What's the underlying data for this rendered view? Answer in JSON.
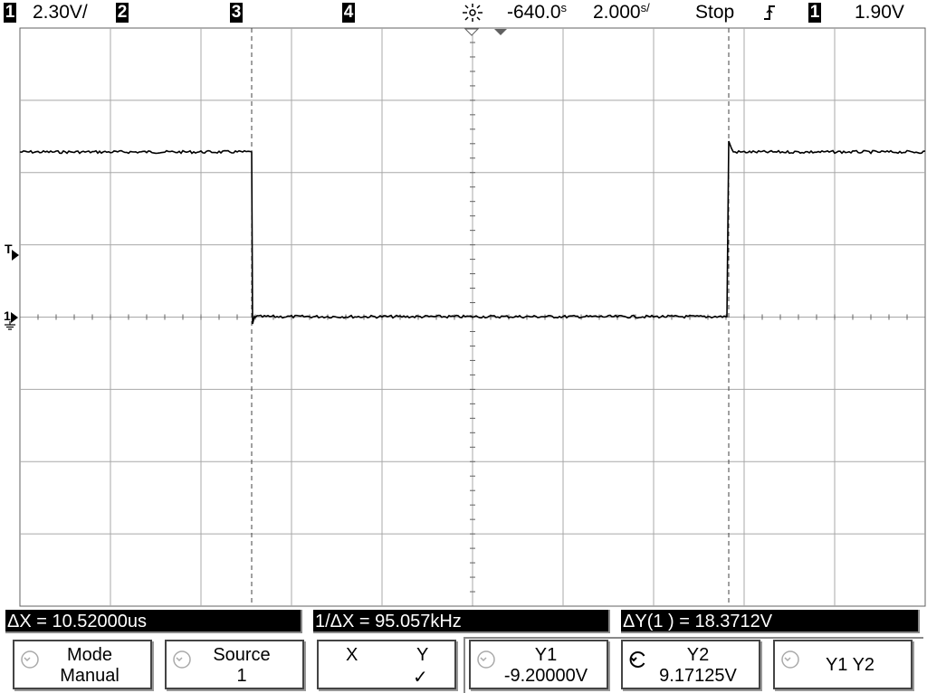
{
  "topbar": {
    "ch1_num": "1",
    "ch1_scale": "2.30V/",
    "ch2_num": "2",
    "ch3_num": "3",
    "ch4_num": "4",
    "time_delay": "-640.0",
    "time_delay_unit": "s",
    "time_scale": "2.000",
    "time_scale_unit": "s/",
    "run_state": "Stop",
    "trigger_slope_symbol": "Ⴒ",
    "trigger_source": "1",
    "trigger_level": "1.90V"
  },
  "markers": {
    "trigger_level_marker": "T",
    "ch1_ground_marker": "1"
  },
  "trace": {
    "description_colors": {
      "trace": "#000000",
      "grid": "#a0a0a0",
      "cursor": "#404040"
    },
    "levels_volts": {
      "high": 9.17,
      "low": -9.2
    },
    "edges_us": {
      "falling": -2.56,
      "rising": 7.96
    }
  },
  "measurements": {
    "delta_x": "ΔX = 10.52000us",
    "inv_delta_x": "1/ΔX = 95.057kHz",
    "delta_y": "ΔY(1 ) = 18.3712V"
  },
  "softkeys": {
    "mode_label": "Mode",
    "mode_value": "Manual",
    "source_label": "Source",
    "source_value": "1",
    "x_label": "X",
    "y_label": "Y",
    "y_check": "✓",
    "y1_label": "Y1",
    "y1_value": "-9.20000V",
    "y2_label": "Y2",
    "y2_value": "9.17125V",
    "y1y2_label": "Y1 Y2"
  }
}
